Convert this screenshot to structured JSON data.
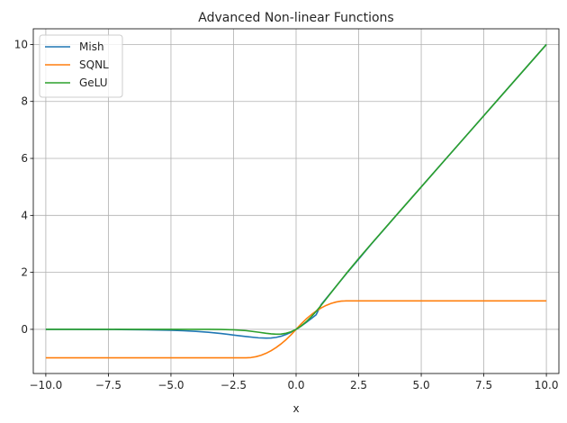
{
  "chart_data": {
    "type": "line",
    "title": "Advanced Non-linear Functions",
    "xlabel": "x",
    "ylabel": "",
    "xlim": [
      -10.5,
      10.5
    ],
    "ylim": [
      -1.55,
      10.55
    ],
    "xticks": [
      -10.0,
      -7.5,
      -5.0,
      -2.5,
      0.0,
      2.5,
      5.0,
      7.5,
      10.0
    ],
    "xtick_labels": [
      "−10.0",
      "−7.5",
      "−5.0",
      "−2.5",
      "0.0",
      "2.5",
      "5.0",
      "7.5",
      "10.0"
    ],
    "yticks": [
      0,
      2,
      4,
      6,
      8,
      10
    ],
    "ytick_labels": [
      "0",
      "2",
      "4",
      "6",
      "8",
      "10"
    ],
    "grid": true,
    "legend_position": "top-left",
    "series": [
      {
        "name": "Mish",
        "color": "#1f77b4",
        "x": [
          -10,
          -9,
          -8,
          -7,
          -6,
          -5,
          -4.5,
          -4,
          -3.5,
          -3,
          -2.5,
          -2,
          -1.5,
          -1.2,
          -1,
          -0.8,
          -0.6,
          -0.4,
          -0.2,
          0,
          0.2,
          0.4,
          0.6,
          0.8,
          1,
          1.5,
          2,
          2.5,
          3,
          4,
          5,
          6,
          7,
          8,
          9,
          10
        ],
        "y": [
          -0.0005,
          -0.0011,
          -0.0027,
          -0.0064,
          -0.0149,
          -0.0336,
          -0.0492,
          -0.0716,
          -0.1028,
          -0.1456,
          -0.2013,
          -0.2525,
          -0.2983,
          -0.3085,
          -0.3034,
          -0.2822,
          -0.2415,
          -0.1805,
          -0.0995,
          0.0,
          0.1153,
          0.2413,
          0.3742,
          0.5114,
          0.8651,
          1.4033,
          1.944,
          2.4622,
          2.9865,
          3.9974,
          4.9996,
          5.9999,
          7.0,
          8.0,
          9.0,
          10.0
        ]
      },
      {
        "name": "SQNL",
        "color": "#ff7f0e",
        "x": [
          -10,
          -8,
          -6,
          -4,
          -2.5,
          -2,
          -1.8,
          -1.6,
          -1.4,
          -1.2,
          -1,
          -0.8,
          -0.6,
          -0.4,
          -0.2,
          0,
          0.2,
          0.4,
          0.6,
          0.8,
          1,
          1.2,
          1.4,
          1.6,
          1.8,
          2,
          2.5,
          4,
          6,
          8,
          10
        ],
        "y": [
          -1,
          -1,
          -1,
          -1,
          -1,
          -1,
          -0.99,
          -0.96,
          -0.91,
          -0.84,
          -0.75,
          -0.64,
          -0.51,
          -0.36,
          -0.19,
          0,
          0.19,
          0.36,
          0.51,
          0.64,
          0.75,
          0.84,
          0.91,
          0.96,
          0.99,
          1,
          1,
          1,
          1,
          1,
          1
        ]
      },
      {
        "name": "GeLU",
        "color": "#2ca02c",
        "x": [
          -10,
          -8,
          -6,
          -5,
          -4,
          -3.5,
          -3,
          -2.5,
          -2,
          -1.5,
          -1.2,
          -1,
          -0.8,
          -0.6,
          -0.4,
          -0.2,
          0,
          0.2,
          0.4,
          0.6,
          0.8,
          1,
          1.5,
          2,
          2.5,
          3,
          4,
          5,
          6,
          7,
          8,
          9,
          10
        ],
        "y": [
          0,
          0,
          0,
          0,
          -0.0001,
          -0.0008,
          -0.004,
          -0.0155,
          -0.0455,
          -0.1002,
          -0.1381,
          -0.1587,
          -0.1695,
          -0.1646,
          -0.1381,
          -0.0842,
          0,
          0.1158,
          0.2619,
          0.4354,
          0.6305,
          0.8413,
          1.3998,
          1.9545,
          2.4845,
          2.996,
          3.9999,
          5.0,
          6.0,
          7.0,
          8.0,
          9.0,
          10.0
        ]
      }
    ]
  }
}
